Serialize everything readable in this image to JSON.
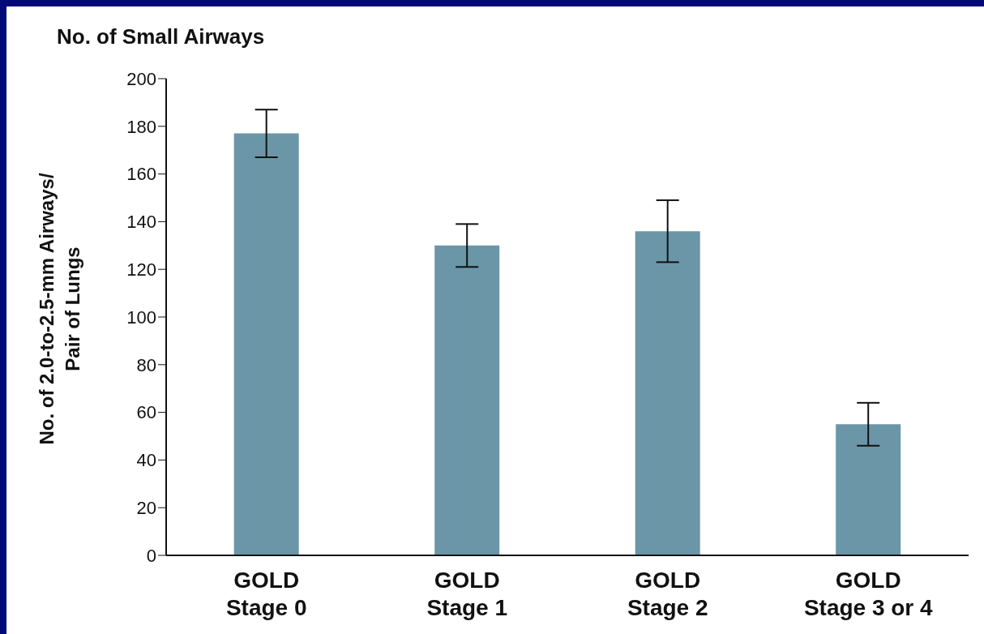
{
  "chart_data": {
    "type": "bar",
    "title": "No. of Small Airways",
    "ylabel": "No. of 2.0-to-2.5-mm Airways/\nPair of Lungs",
    "categories": [
      "GOLD\nStage 0",
      "GOLD\nStage 1",
      "GOLD\nStage 2",
      "GOLD\nStage 3 or 4"
    ],
    "values": [
      177,
      130,
      136,
      55
    ],
    "errors": [
      10,
      9,
      13,
      9
    ],
    "color": "#6a96a8",
    "ylim": [
      0,
      200
    ],
    "yticks": [
      0,
      20,
      40,
      60,
      80,
      100,
      120,
      140,
      160,
      180,
      200
    ],
    "grid": false,
    "legend": false
  }
}
